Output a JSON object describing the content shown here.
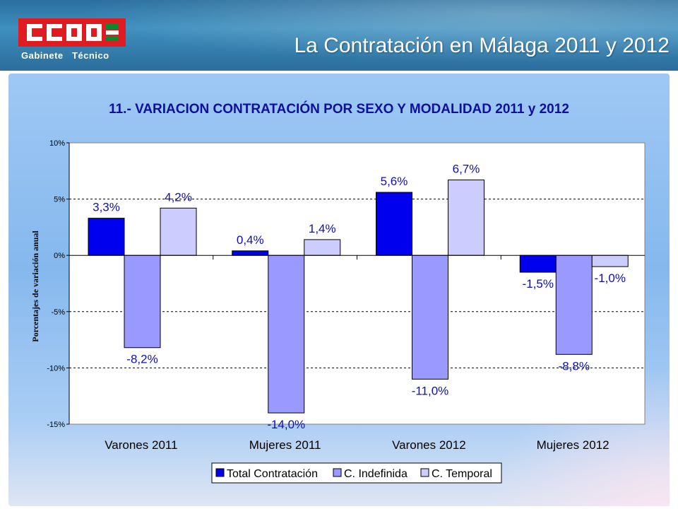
{
  "header": {
    "logo_text": "CCOO",
    "logo_subtitle": "Gabinete   Técnico",
    "title": "La Contratación en Málaga 2011 y 2012"
  },
  "colors": {
    "logo_red": "#e01b22",
    "logo_green": "#0a8a2e",
    "title_blue": "#0f0f99",
    "label_blue": "#0d0dbf"
  },
  "chart_data": {
    "type": "bar",
    "title": "11.- VARIACION CONTRATACIÓN POR SEXO Y MODALIDAD 2011 y 2012",
    "ylabel": "Porcentajes de variación anual",
    "xlabel": "",
    "ylim": [
      -15,
      10
    ],
    "yticks": [
      10,
      5,
      0,
      -5,
      -10,
      -15
    ],
    "ytick_labels": [
      "10%",
      "5%",
      "0%",
      "-5%",
      "-10%",
      "-15%"
    ],
    "grid": "horizontal dashed",
    "legend_position": "bottom",
    "categories": [
      "Varones 2011",
      "Mujeres 2011",
      "Varones 2012",
      "Mujeres 2012"
    ],
    "series": [
      {
        "name": "Total Contratación",
        "color": "#0000ee",
        "values": [
          3.3,
          0.4,
          5.6,
          -1.5
        ],
        "labels": [
          "3,3%",
          "0,4%",
          "5,6%",
          "-1,5%"
        ]
      },
      {
        "name": "C. Indefinida",
        "color": "#9999ff",
        "values": [
          -8.2,
          -14.0,
          -11.0,
          -8.8
        ],
        "labels": [
          "-8,2%",
          "-14,0%",
          "-11,0%",
          "-8,8%"
        ]
      },
      {
        "name": "C. Temporal",
        "color": "#ccccff",
        "values": [
          4.2,
          1.4,
          6.7,
          -1.0
        ],
        "labels": [
          "4,2%",
          "1,4%",
          "6,7%",
          "-1,0%"
        ]
      }
    ]
  }
}
